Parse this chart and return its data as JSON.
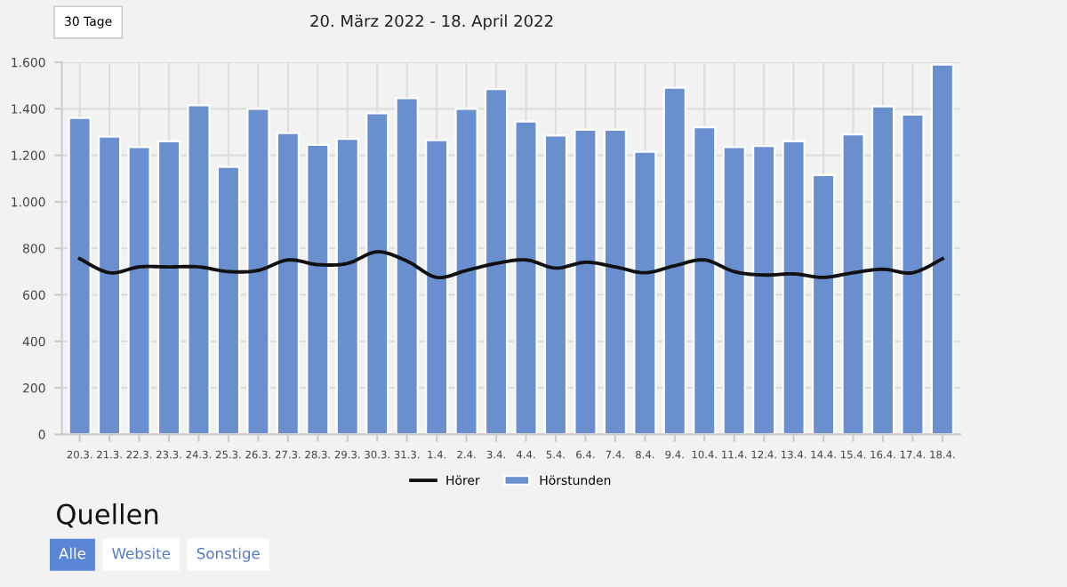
{
  "chart_data": {
    "type": "bar",
    "categories": [
      "20.3.",
      "21.3.",
      "22.3.",
      "23.3.",
      "24.3.",
      "25.3.",
      "26.3.",
      "27.3.",
      "28.3.",
      "29.3.",
      "30.3.",
      "31.3.",
      "1.4.",
      "2.4.",
      "3.4.",
      "4.4.",
      "5.4.",
      "6.4.",
      "7.4.",
      "8.4.",
      "9.4.",
      "10.4.",
      "11.4.",
      "12.4.",
      "13.4.",
      "14.4.",
      "15.4.",
      "16.4.",
      "17.4.",
      "18.4."
    ],
    "series": [
      {
        "name": "Hörer",
        "type": "line",
        "color": "#111111",
        "values": [
          755,
          695,
          720,
          720,
          720,
          700,
          705,
          750,
          730,
          735,
          785,
          745,
          675,
          705,
          735,
          750,
          715,
          740,
          720,
          695,
          725,
          750,
          700,
          685,
          690,
          675,
          695,
          710,
          695,
          755
        ]
      },
      {
        "name": "Hörstunden",
        "color": "#6a8fcf",
        "values": [
          1360,
          1280,
          1235,
          1260,
          1415,
          1150,
          1400,
          1295,
          1245,
          1270,
          1380,
          1445,
          1265,
          1400,
          1485,
          1345,
          1285,
          1310,
          1310,
          1215,
          1490,
          1320,
          1235,
          1240,
          1260,
          1115,
          1290,
          1410,
          1375,
          1590
        ]
      }
    ],
    "ylim": [
      0,
      1600
    ],
    "yticks": [
      {
        "value": 0,
        "label": "0"
      },
      {
        "value": 200,
        "label": "200"
      },
      {
        "value": 400,
        "label": "400"
      },
      {
        "value": 600,
        "label": "600"
      },
      {
        "value": 800,
        "label": "800"
      },
      {
        "value": 1000,
        "label": "1.000"
      },
      {
        "value": 1200,
        "label": "1.200"
      },
      {
        "value": 1400,
        "label": "1.400"
      },
      {
        "value": 1600,
        "label": "1.600"
      }
    ],
    "grid": true,
    "legend": "bottom",
    "annotations": [
      "30 Tage",
      "20. März 2022 - 18. April 2022",
      "Quellen",
      "Alle",
      "Website",
      "Sonstige"
    ]
  }
}
